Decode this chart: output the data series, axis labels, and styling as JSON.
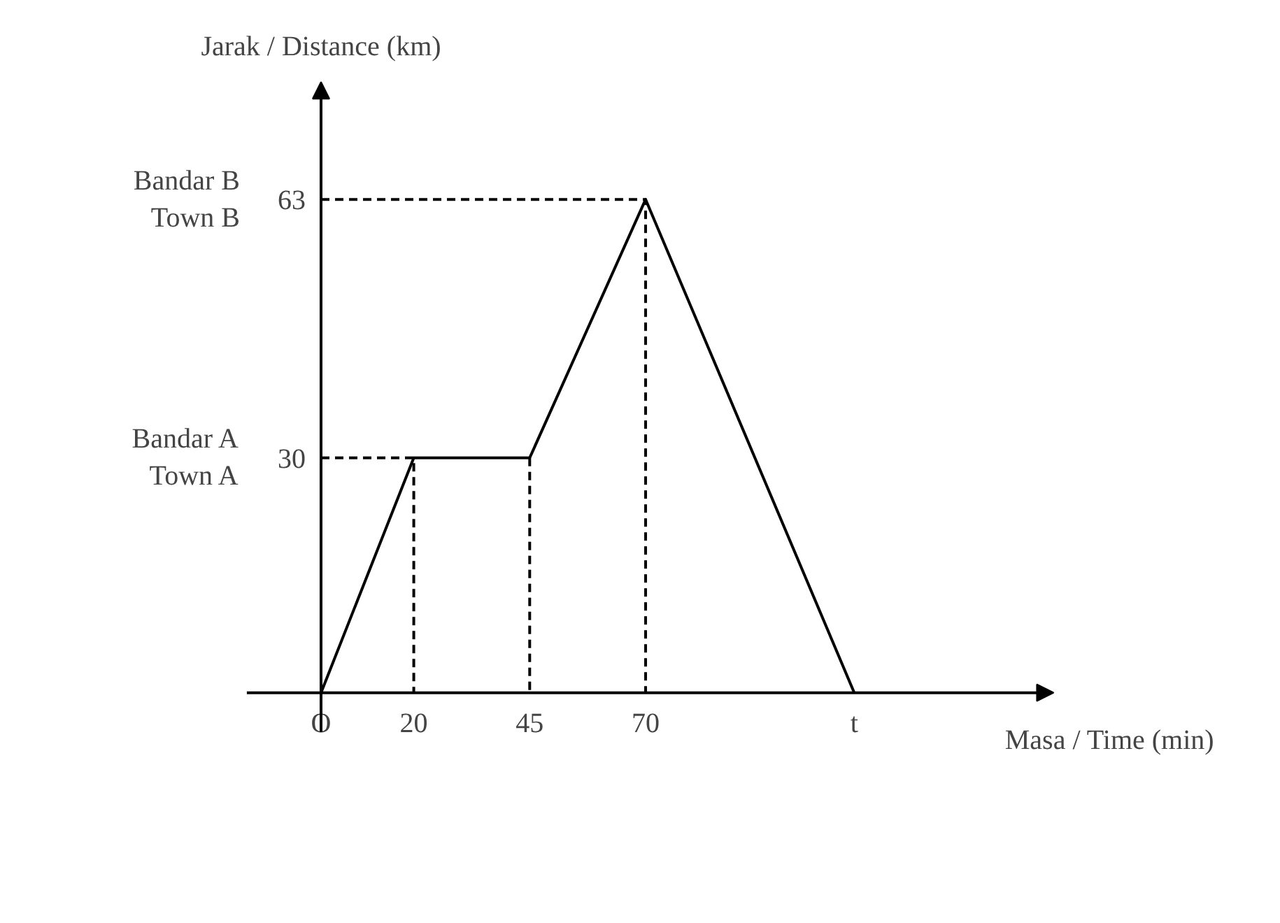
{
  "chart_data": {
    "type": "line",
    "xlabel": "Masa / Time (min)",
    "ylabel": "Jarak / Distance (km)",
    "xlim": [
      -16,
      158
    ],
    "ylim": [
      -5,
      78
    ],
    "xticks": [
      {
        "value": 0,
        "label": "O"
      },
      20,
      45,
      70,
      {
        "value": 115,
        "label": "t"
      }
    ],
    "yticks": [
      30,
      63
    ],
    "grid": false,
    "marker": "none",
    "series": [
      {
        "color": "#000000",
        "line_style": "solid",
        "x": [
          0,
          20,
          45,
          70,
          115
        ],
        "values": [
          0,
          30,
          30,
          63,
          0
        ]
      },
      {
        "color": "#000000",
        "line_style": "dashed",
        "x": [
          0,
          20,
          20
        ],
        "values": [
          30,
          30,
          0
        ]
      },
      {
        "color": "#000000",
        "line_style": "dashed",
        "x": [
          45,
          45
        ],
        "values": [
          30,
          0
        ]
      },
      {
        "color": "#000000",
        "line_style": "dashed",
        "x": [
          0,
          70,
          70
        ],
        "values": [
          63,
          63,
          0
        ]
      }
    ],
    "annotations": [
      "Bandar A\nTown A",
      "Bandar B\nTown B"
    ]
  }
}
